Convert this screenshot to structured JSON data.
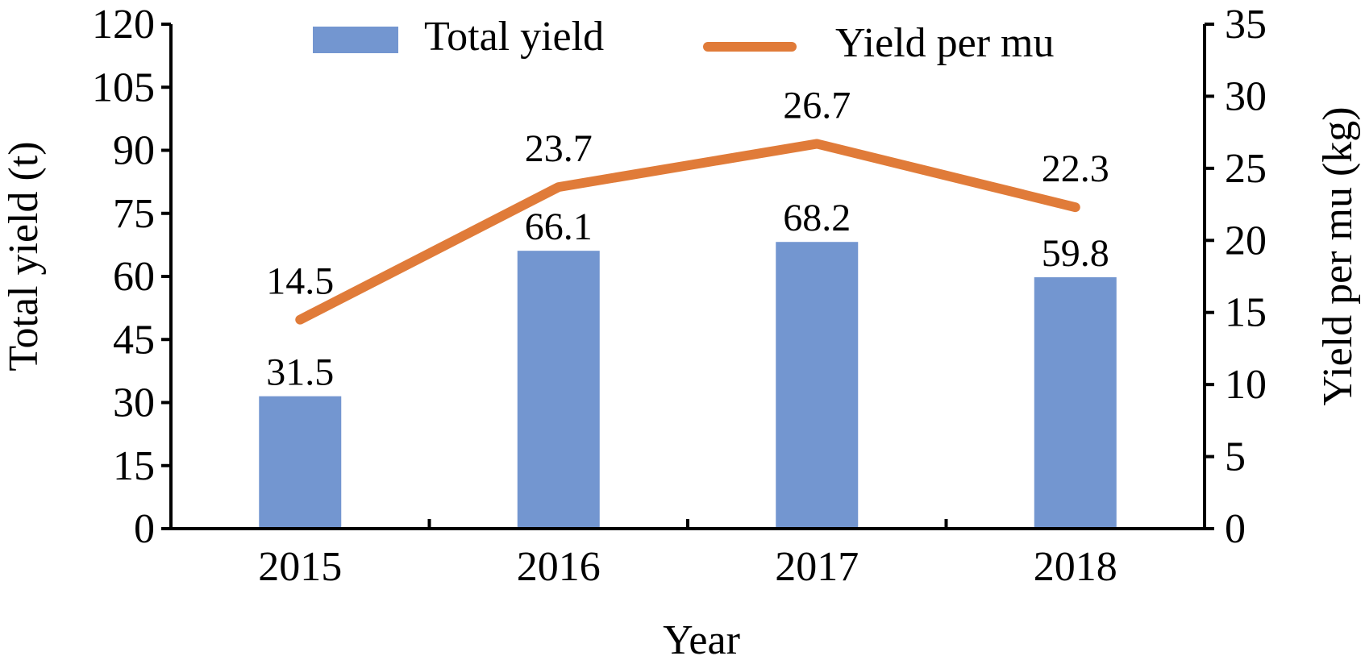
{
  "chart_data": {
    "type": "bar",
    "categories": [
      "2015",
      "2016",
      "2017",
      "2018"
    ],
    "series": [
      {
        "name": "Total yield",
        "type": "bar",
        "axis": "left",
        "color": "#7396d0",
        "values": [
          31.5,
          66.1,
          68.2,
          59.8
        ]
      },
      {
        "name": "Yield per mu",
        "type": "line",
        "axis": "right",
        "color": "#e07b39",
        "values": [
          14.5,
          23.7,
          26.7,
          22.3
        ]
      }
    ],
    "xlabel": "Year",
    "ylabel": "Total yield (t)",
    "ylabel_right": "Yield per mu (kg)",
    "ylim": [
      0,
      120
    ],
    "ylim_right": [
      0,
      35
    ],
    "yticks": [
      "0",
      "15",
      "30",
      "45",
      "60",
      "75",
      "90",
      "105",
      "120"
    ],
    "yticks_right": [
      "0",
      "5",
      "10",
      "15",
      "20",
      "25",
      "30",
      "35"
    ],
    "legend_position": "top",
    "grid": false
  }
}
